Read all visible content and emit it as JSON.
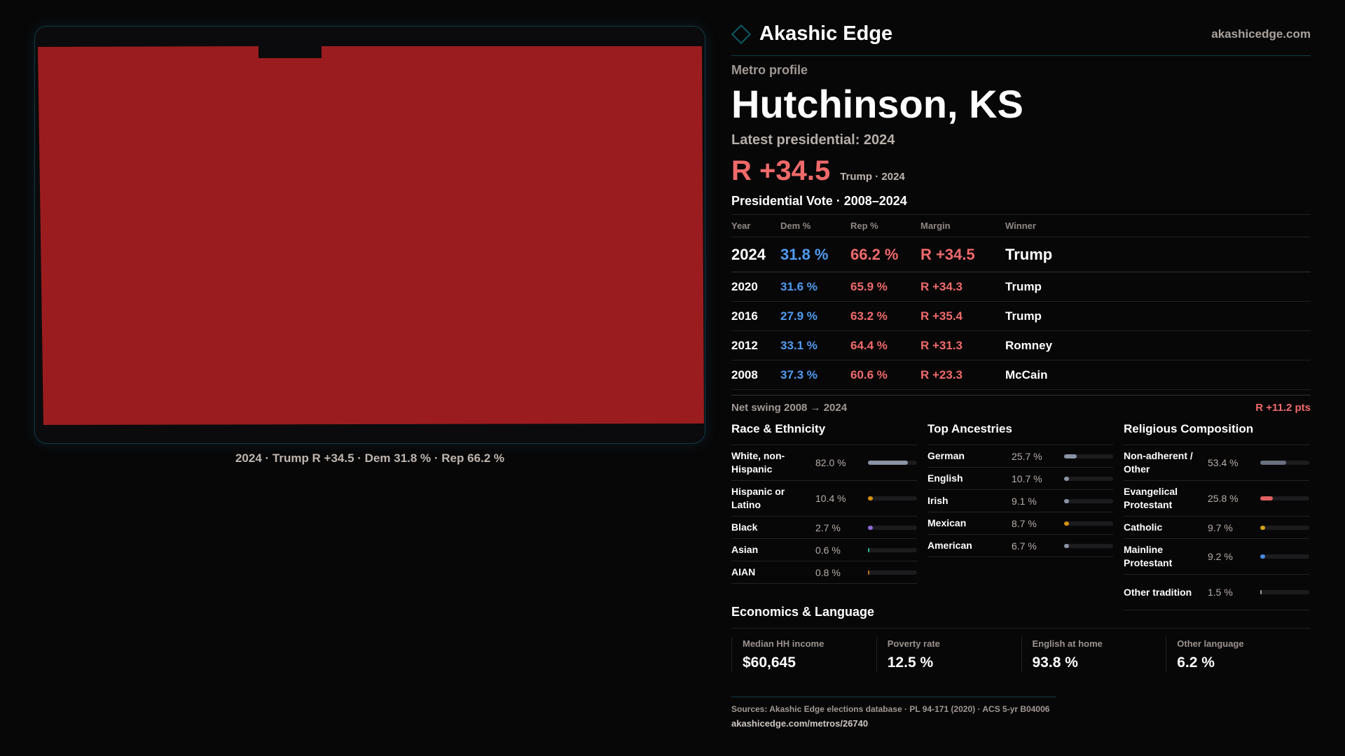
{
  "brand": {
    "name": "Akashic Edge",
    "site": "akashicedge.com"
  },
  "map": {
    "fill_color": "#9b1c1f",
    "caption": "2024 · Trump R +34.5 · Dem 31.8 % · Rep 66.2 %"
  },
  "profile": {
    "kicker": "Metro profile",
    "title": "Hutchinson, KS",
    "latest": "Latest presidential: 2024",
    "margin": "R +34.5",
    "margin_sub": "Trump · 2024"
  },
  "vote": {
    "title": "Presidential Vote · 2008–2024",
    "headers": [
      "Year",
      "Dem %",
      "Rep %",
      "Margin",
      "Winner"
    ],
    "rows": [
      [
        "2024",
        "31.8 %",
        "66.2 %",
        "R +34.5",
        "Trump"
      ],
      [
        "2020",
        "31.6 %",
        "65.9 %",
        "R +34.3",
        "Trump"
      ],
      [
        "2016",
        "27.9 %",
        "63.2 %",
        "R +35.4",
        "Trump"
      ],
      [
        "2012",
        "33.1 %",
        "64.4 %",
        "R +31.3",
        "Romney"
      ],
      [
        "2008",
        "37.3 %",
        "60.6 %",
        "R +23.3",
        "McCain"
      ]
    ]
  },
  "swing": {
    "label": "Net swing 2008 → 2024",
    "value": "R +11.2 pts"
  },
  "sections": [
    {
      "title": "Race & Ethnicity",
      "items": [
        {
          "label": "White, non-Hispanic",
          "pct": "82.0 %",
          "value": 82.0,
          "color": "#8a94a6"
        },
        {
          "label": "Hispanic or Latino",
          "pct": "10.4 %",
          "value": 10.4,
          "color": "#d4900f"
        },
        {
          "label": "Black",
          "pct": "2.7 %",
          "value": 2.7,
          "color": "#8b6bd6"
        },
        {
          "label": "Asian",
          "pct": "0.6 %",
          "value": 0.6,
          "color": "#2bb58f"
        },
        {
          "label": "AIAN",
          "pct": "0.8 %",
          "value": 0.8,
          "color": "#c07020"
        }
      ]
    },
    {
      "title": "Top Ancestries",
      "items": [
        {
          "label": "German",
          "pct": "25.7 %",
          "value": 25.7,
          "color": "#8a94a6"
        },
        {
          "label": "English",
          "pct": "10.7 %",
          "value": 10.7,
          "color": "#8a94a6"
        },
        {
          "label": "Irish",
          "pct": "9.1 %",
          "value": 9.1,
          "color": "#8a94a6"
        },
        {
          "label": "Mexican",
          "pct": "8.7 %",
          "value": 8.7,
          "color": "#d4900f"
        },
        {
          "label": "American",
          "pct": "6.7 %",
          "value": 6.7,
          "color": "#8a94a6"
        }
      ]
    },
    {
      "title": "Religious Composition",
      "items": [
        {
          "label": "Non-adherent / Other",
          "pct": "53.4 %",
          "value": 53.4,
          "color": "#6b7080"
        },
        {
          "label": "Evangelical Protestant",
          "pct": "25.8 %",
          "value": 25.8,
          "color": "#e06060"
        },
        {
          "label": "Catholic",
          "pct": "9.7 %",
          "value": 9.7,
          "color": "#d4a017"
        },
        {
          "label": "Mainline Protestant",
          "pct": "9.2 %",
          "value": 9.2,
          "color": "#4a8ae0"
        },
        {
          "label": "Other tradition",
          "pct": "1.5 %",
          "value": 1.5,
          "color": "#9aa0a8"
        }
      ]
    }
  ],
  "economics": {
    "title": "Economics & Language",
    "stats": [
      {
        "label": "Median HH income",
        "value": "$60,645"
      },
      {
        "label": "Poverty rate",
        "value": "12.5 %"
      },
      {
        "label": "English at home",
        "value": "93.8 %"
      },
      {
        "label": "Other language",
        "value": "6.2 %"
      }
    ]
  },
  "footer": {
    "sources": "Sources: Akashic Edge elections database · PL 94-171 (2020) · ACS 5-yr B04006",
    "link": "akashicedge.com/metros/26740"
  }
}
